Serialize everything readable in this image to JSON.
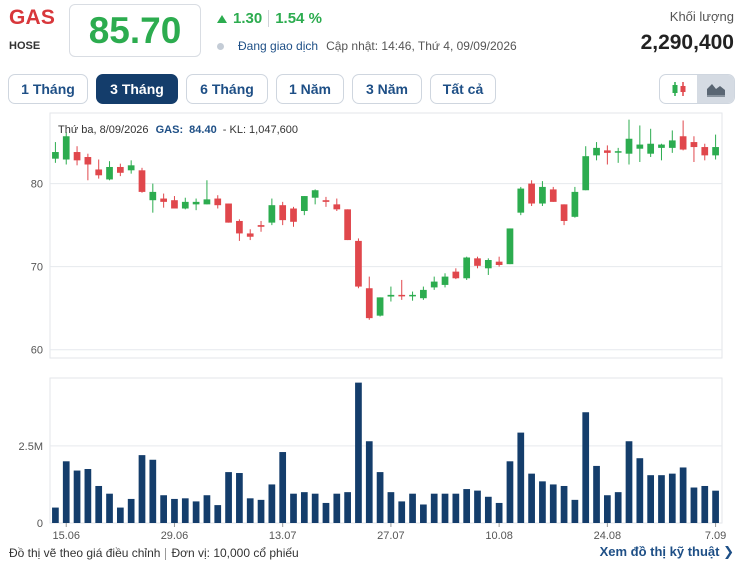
{
  "header": {
    "symbol": "GAS",
    "exchange": "HOSE",
    "price": "85.70",
    "change": "1.30",
    "change_pct": "1.54 %",
    "status": "Đang giao dịch",
    "update": "Cập nhật: 14:46, Thứ 4, 09/09/2026",
    "volume_label": "Khối lượng",
    "volume_value": "2,290,400"
  },
  "tabs": [
    {
      "label": "1 Tháng",
      "active": false
    },
    {
      "label": "3 Tháng",
      "active": true
    },
    {
      "label": "6 Tháng",
      "active": false
    },
    {
      "label": "1 Năm",
      "active": false
    },
    {
      "label": "3 Năm",
      "active": false
    },
    {
      "label": "Tất cả",
      "active": false
    }
  ],
  "chart_toggle": {
    "icons": [
      "candlestick-icon",
      "area-chart-icon"
    ],
    "selected": "area-chart-icon"
  },
  "colors": {
    "up": "#2cac4f",
    "down": "#e0474c",
    "volume": "#143d6b",
    "accent": "#1e4f86",
    "price": "#2cac4f"
  },
  "chart_data": {
    "type": "candlestick",
    "tooltip": {
      "date": "Thứ ba, 8/09/2026",
      "symbol": "GAS:",
      "price": "84.40",
      "volume_text": "- KL: 1,047,600"
    },
    "price_ticks": [
      "80",
      "70",
      "60"
    ],
    "price_ylim": [
      59,
      88.5
    ],
    "volume_ticks": [
      "2.5M",
      "0"
    ],
    "volume_ylim": [
      0,
      4700000
    ],
    "x_ticks": [
      {
        "label": "15.06",
        "index": 1
      },
      {
        "label": "29.06",
        "index": 11
      },
      {
        "label": "13.07",
        "index": 21
      },
      {
        "label": "27.07",
        "index": 31
      },
      {
        "label": "10.08",
        "index": 41
      },
      {
        "label": "24.08",
        "index": 51
      },
      {
        "label": "7.09",
        "index": 61
      }
    ],
    "candles": [
      {
        "o": 83.0,
        "h": 85.0,
        "l": 82.5,
        "c": 83.8,
        "v": 500000
      },
      {
        "o": 82.9,
        "h": 86.2,
        "l": 82.3,
        "c": 85.7,
        "v": 2000000
      },
      {
        "o": 83.8,
        "h": 84.5,
        "l": 82.2,
        "c": 82.8,
        "v": 1700000
      },
      {
        "o": 83.2,
        "h": 83.6,
        "l": 80.4,
        "c": 82.3,
        "v": 1750000
      },
      {
        "o": 81.7,
        "h": 82.9,
        "l": 80.6,
        "c": 81.0,
        "v": 1200000
      },
      {
        "o": 80.5,
        "h": 82.7,
        "l": 80.4,
        "c": 82.0,
        "v": 950000
      },
      {
        "o": 82.0,
        "h": 82.4,
        "l": 80.9,
        "c": 81.3,
        "v": 500000
      },
      {
        "o": 81.6,
        "h": 82.8,
        "l": 81.2,
        "c": 82.2,
        "v": 780000
      },
      {
        "o": 81.6,
        "h": 81.9,
        "l": 78.9,
        "c": 79.0,
        "v": 2200000
      },
      {
        "o": 78.0,
        "h": 80.0,
        "l": 76.5,
        "c": 79.0,
        "v": 2050000
      },
      {
        "o": 78.2,
        "h": 78.8,
        "l": 77.1,
        "c": 77.8,
        "v": 900000
      },
      {
        "o": 78.0,
        "h": 78.5,
        "l": 77.0,
        "c": 77.0,
        "v": 780000
      },
      {
        "o": 77.0,
        "h": 78.3,
        "l": 76.9,
        "c": 77.8,
        "v": 800000
      },
      {
        "o": 77.5,
        "h": 78.2,
        "l": 76.8,
        "c": 77.8,
        "v": 700000
      },
      {
        "o": 77.5,
        "h": 80.4,
        "l": 77.5,
        "c": 78.1,
        "v": 900000
      },
      {
        "o": 78.2,
        "h": 78.6,
        "l": 77.0,
        "c": 77.4,
        "v": 580000
      },
      {
        "o": 77.6,
        "h": 77.6,
        "l": 75.3,
        "c": 75.3,
        "v": 1650000
      },
      {
        "o": 75.5,
        "h": 75.7,
        "l": 73.1,
        "c": 74.0,
        "v": 1620000
      },
      {
        "o": 74.0,
        "h": 74.5,
        "l": 73.2,
        "c": 73.6,
        "v": 800000
      },
      {
        "o": 75.0,
        "h": 75.5,
        "l": 74.2,
        "c": 74.8,
        "v": 750000
      },
      {
        "o": 75.3,
        "h": 78.2,
        "l": 75.0,
        "c": 77.4,
        "v": 1250000
      },
      {
        "o": 77.4,
        "h": 77.8,
        "l": 75.0,
        "c": 75.6,
        "v": 2300000
      },
      {
        "o": 77.0,
        "h": 77.2,
        "l": 74.8,
        "c": 75.4,
        "v": 950000
      },
      {
        "o": 76.7,
        "h": 78.5,
        "l": 76.2,
        "c": 78.5,
        "v": 1000000
      },
      {
        "o": 78.3,
        "h": 79.3,
        "l": 77.5,
        "c": 79.2,
        "v": 950000
      },
      {
        "o": 78.0,
        "h": 78.4,
        "l": 77.2,
        "c": 77.8,
        "v": 650000
      },
      {
        "o": 77.5,
        "h": 78.2,
        "l": 76.7,
        "c": 76.9,
        "v": 950000
      },
      {
        "o": 76.9,
        "h": 76.9,
        "l": 73.2,
        "c": 73.2,
        "v": 1000000
      },
      {
        "o": 73.1,
        "h": 73.4,
        "l": 67.4,
        "c": 67.6,
        "v": 4550000
      },
      {
        "o": 67.4,
        "h": 68.8,
        "l": 63.6,
        "c": 63.8,
        "v": 2650000
      },
      {
        "o": 64.1,
        "h": 66.3,
        "l": 64.0,
        "c": 66.3,
        "v": 1650000
      },
      {
        "o": 66.4,
        "h": 67.6,
        "l": 65.8,
        "c": 66.6,
        "v": 1000000
      },
      {
        "o": 66.6,
        "h": 68.4,
        "l": 66.0,
        "c": 66.5,
        "v": 700000
      },
      {
        "o": 66.5,
        "h": 67.0,
        "l": 65.9,
        "c": 66.6,
        "v": 950000
      },
      {
        "o": 66.2,
        "h": 67.6,
        "l": 66.0,
        "c": 67.2,
        "v": 600000
      },
      {
        "o": 67.5,
        "h": 68.8,
        "l": 67.2,
        "c": 68.2,
        "v": 950000
      },
      {
        "o": 67.8,
        "h": 69.2,
        "l": 67.5,
        "c": 68.8,
        "v": 950000
      },
      {
        "o": 69.4,
        "h": 69.8,
        "l": 68.5,
        "c": 68.6,
        "v": 950000
      },
      {
        "o": 68.6,
        "h": 71.2,
        "l": 68.4,
        "c": 71.1,
        "v": 1100000
      },
      {
        "o": 71.0,
        "h": 71.2,
        "l": 69.8,
        "c": 70.1,
        "v": 1050000
      },
      {
        "o": 69.8,
        "h": 71.0,
        "l": 69.0,
        "c": 70.8,
        "v": 850000
      },
      {
        "o": 70.6,
        "h": 71.2,
        "l": 70.0,
        "c": 70.2,
        "v": 650000
      },
      {
        "o": 70.3,
        "h": 74.6,
        "l": 70.3,
        "c": 74.6,
        "v": 2000000
      },
      {
        "o": 76.5,
        "h": 79.6,
        "l": 76.2,
        "c": 79.4,
        "v": 2930000
      },
      {
        "o": 80.0,
        "h": 80.4,
        "l": 77.3,
        "c": 77.6,
        "v": 1600000
      },
      {
        "o": 77.6,
        "h": 80.3,
        "l": 77.3,
        "c": 79.6,
        "v": 1350000
      },
      {
        "o": 79.3,
        "h": 79.6,
        "l": 77.8,
        "c": 77.8,
        "v": 1250000
      },
      {
        "o": 77.5,
        "h": 77.5,
        "l": 75.0,
        "c": 75.5,
        "v": 1200000
      },
      {
        "o": 76.0,
        "h": 79.6,
        "l": 75.9,
        "c": 79.0,
        "v": 750000
      },
      {
        "o": 79.2,
        "h": 84.5,
        "l": 79.2,
        "c": 83.3,
        "v": 3590000
      },
      {
        "o": 83.4,
        "h": 85.0,
        "l": 82.8,
        "c": 84.3,
        "v": 1850000
      },
      {
        "o": 84.0,
        "h": 84.6,
        "l": 82.3,
        "c": 83.7,
        "v": 900000
      },
      {
        "o": 83.9,
        "h": 84.3,
        "l": 82.5,
        "c": 83.9,
        "v": 1000000
      },
      {
        "o": 83.6,
        "h": 87.7,
        "l": 82.3,
        "c": 85.4,
        "v": 2650000
      },
      {
        "o": 84.2,
        "h": 87.0,
        "l": 82.6,
        "c": 84.7,
        "v": 2100000
      },
      {
        "o": 83.6,
        "h": 86.6,
        "l": 83.2,
        "c": 84.8,
        "v": 1550000
      },
      {
        "o": 84.3,
        "h": 84.8,
        "l": 82.8,
        "c": 84.7,
        "v": 1550000
      },
      {
        "o": 84.3,
        "h": 86.4,
        "l": 83.7,
        "c": 85.2,
        "v": 1600000
      },
      {
        "o": 85.7,
        "h": 87.6,
        "l": 84.0,
        "c": 84.1,
        "v": 1800000
      },
      {
        "o": 85.0,
        "h": 85.7,
        "l": 82.6,
        "c": 84.4,
        "v": 1150000
      },
      {
        "o": 84.4,
        "h": 84.8,
        "l": 82.8,
        "c": 83.4,
        "v": 1200000
      },
      {
        "o": 83.4,
        "h": 85.9,
        "l": 82.9,
        "c": 84.4,
        "v": 1047600
      }
    ]
  },
  "footer": {
    "note": "Đồ thị vẽ theo giá điều chỉnh",
    "unit": "Đơn vị: 10,000 cổ phiếu",
    "link": "Xem đồ thị kỹ thuật",
    "link_arrow": "❯"
  }
}
